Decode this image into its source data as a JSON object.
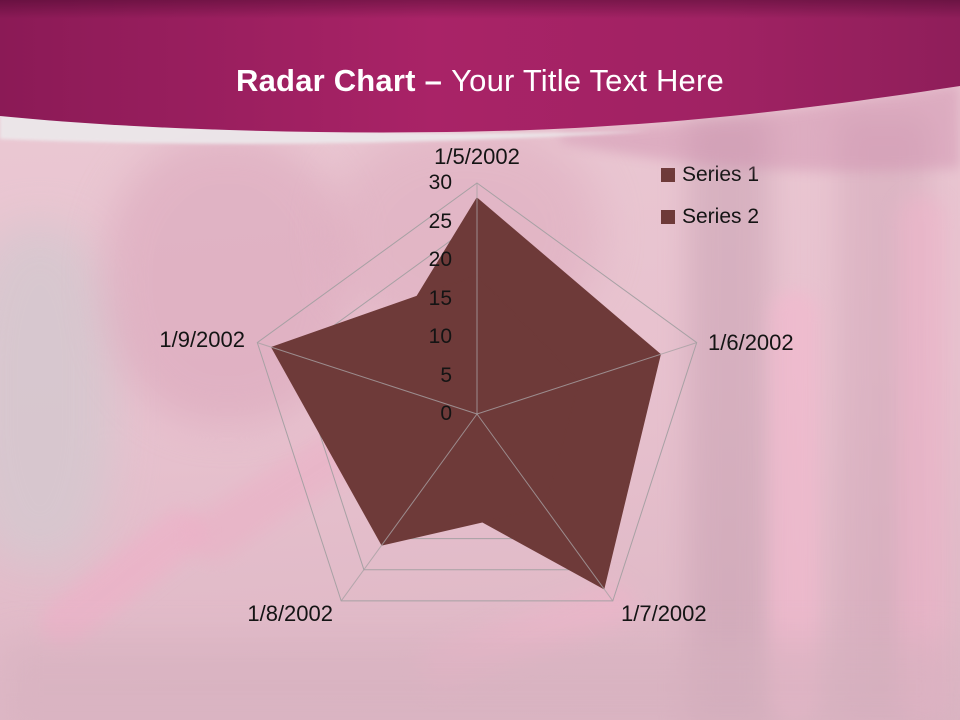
{
  "slide": {
    "title_bold": "Radar Chart",
    "title_separator": "–",
    "title_rest": "Your Title Text Here"
  },
  "colors": {
    "band_magenta_bright": "#a92367",
    "band_magenta_dark": "#8b1a56",
    "band_wave_white": "#ece7ea",
    "band_under_strip": "#cf8fae",
    "background_pink": "#eac7d2",
    "series_fill": "#6e3a39",
    "grid_line": "#a7a1a4",
    "label_text": "#141414",
    "title_text": "#ffffff"
  },
  "chart_data": {
    "type": "radar",
    "title": "",
    "categories": [
      "1/5/2002",
      "1/6/2002",
      "1/7/2002",
      "1/8/2002",
      "1/9/2002"
    ],
    "series": [
      {
        "name": "Series 1",
        "color": "#6e3a39",
        "values": [
          28,
          25,
          28,
          12,
          15
        ]
      },
      {
        "name": "Series 2",
        "color": "#6e3a39",
        "values": [
          18,
          14,
          15,
          21,
          28
        ]
      }
    ],
    "radial_axis": {
      "min": 0,
      "max": 30,
      "tick_interval": 5,
      "ticks": [
        0,
        5,
        10,
        15,
        20,
        25,
        30
      ]
    },
    "gridlines": true,
    "grid_shape": "pentagon",
    "fill_style": "filled",
    "legend_position": "right"
  }
}
